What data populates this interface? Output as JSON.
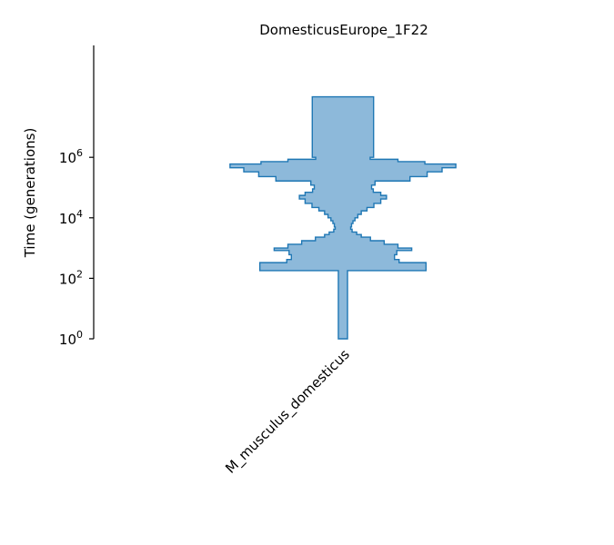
{
  "chart_data": {
    "type": "area",
    "subtype": "demes-population-size-history",
    "title": "DomesticusEurope_1F22",
    "ylabel": "Time (generations)",
    "yscale": "log",
    "ylim": [
      1,
      5000000000
    ],
    "yticks": [
      {
        "value": 1,
        "base": "10",
        "exp": "0"
      },
      {
        "value": 100,
        "base": "10",
        "exp": "2"
      },
      {
        "value": 10000,
        "base": "10",
        "exp": "4"
      },
      {
        "value": 1000000,
        "base": "10",
        "exp": "6"
      }
    ],
    "categories": [
      "M_musculus_domesticus"
    ],
    "color": "#1f77b4",
    "fill_color": "#8db9da",
    "series": [
      {
        "name": "M_musculus_domesticus",
        "x_extent": [
          0,
          100000000
        ],
        "x_extent_note": "time-bounded deme from present (0) to the top of the plot",
        "size_profile": [
          {
            "t_start": 1,
            "t_end": 180,
            "size": 800
          },
          {
            "t_start": 180,
            "t_end": 330,
            "size": 14500
          },
          {
            "t_start": 330,
            "t_end": 420,
            "size": 9800
          },
          {
            "t_start": 420,
            "t_end": 600,
            "size": 9000
          },
          {
            "t_start": 600,
            "t_end": 830,
            "size": 9400
          },
          {
            "t_start": 830,
            "t_end": 1000,
            "size": 12000
          },
          {
            "t_start": 1000,
            "t_end": 1330,
            "size": 9600
          },
          {
            "t_start": 1330,
            "t_end": 1750,
            "size": 7200
          },
          {
            "t_start": 1750,
            "t_end": 2300,
            "size": 4800
          },
          {
            "t_start": 2300,
            "t_end": 2800,
            "size": 3200
          },
          {
            "t_start": 2800,
            "t_end": 3400,
            "size": 2400
          },
          {
            "t_start": 3400,
            "t_end": 4200,
            "size": 1600
          },
          {
            "t_start": 4200,
            "t_end": 5000,
            "size": 1350
          },
          {
            "t_start": 5000,
            "t_end": 6500,
            "size": 1500
          },
          {
            "t_start": 6500,
            "t_end": 8000,
            "size": 1750
          },
          {
            "t_start": 8000,
            "t_end": 10000,
            "size": 2100
          },
          {
            "t_start": 10000,
            "t_end": 13000,
            "size": 2600
          },
          {
            "t_start": 13000,
            "t_end": 17000,
            "size": 3200
          },
          {
            "t_start": 17000,
            "t_end": 22000,
            "size": 4200
          },
          {
            "t_start": 22000,
            "t_end": 30000,
            "size": 5400
          },
          {
            "t_start": 30000,
            "t_end": 42000,
            "size": 6600
          },
          {
            "t_start": 42000,
            "t_end": 55000,
            "size": 7600
          },
          {
            "t_start": 55000,
            "t_end": 70000,
            "size": 6600
          },
          {
            "t_start": 70000,
            "t_end": 90000,
            "size": 5300
          },
          {
            "t_start": 90000,
            "t_end": 120000,
            "size": 5000
          },
          {
            "t_start": 120000,
            "t_end": 165000,
            "size": 5600
          },
          {
            "t_start": 165000,
            "t_end": 230000,
            "size": 11700
          },
          {
            "t_start": 230000,
            "t_end": 330000,
            "size": 14700
          },
          {
            "t_start": 330000,
            "t_end": 450000,
            "size": 17300
          },
          {
            "t_start": 450000,
            "t_end": 600000,
            "size": 19700
          },
          {
            "t_start": 600000,
            "t_end": 720000,
            "size": 14300
          },
          {
            "t_start": 720000,
            "t_end": 860000,
            "size": 9600
          },
          {
            "t_start": 860000,
            "t_end": 1000000,
            "size": 4750
          },
          {
            "t_start": 1000000,
            "t_end": 100000000,
            "size": 5350
          }
        ]
      }
    ],
    "legend": "none",
    "grid": false
  }
}
